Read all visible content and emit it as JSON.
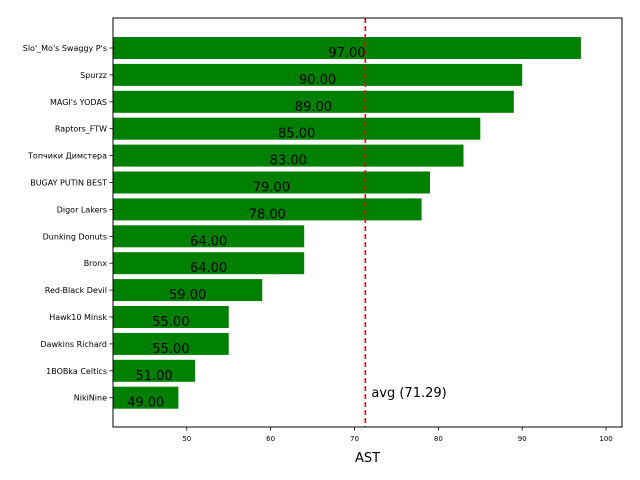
{
  "chart_data": {
    "type": "bar",
    "orientation": "horizontal",
    "categories": [
      "Slo'_Mo's Swaggy P's",
      "Spurzz",
      "MAGI's YODAS",
      "Raptors_FTW",
      "Топчики Димстера",
      "BUGAY PUTIN BEST",
      "Digor Lakers",
      "Dunking Donuts",
      "Bronx",
      "Red-Black Devil",
      "Hawk10 Minsk",
      "Dawkins Richard",
      "1BOBka Celtics",
      "NikiNine"
    ],
    "values": [
      97,
      90,
      89,
      85,
      83,
      79,
      78,
      64,
      64,
      59,
      55,
      55,
      51,
      49
    ],
    "value_labels": [
      "97.00",
      "90.00",
      "89.00",
      "85.00",
      "83.00",
      "79.00",
      "78.00",
      "64.00",
      "64.00",
      "59.00",
      "55.00",
      "55.00",
      "51.00",
      "49.00"
    ],
    "bar_color": "#008000",
    "xlabel": "AST",
    "xlim": [
      41.2,
      101.9
    ],
    "xticks": [
      50,
      60,
      70,
      80,
      90,
      100
    ],
    "xtick_labels": [
      "50",
      "60",
      "70",
      "80",
      "90",
      "100"
    ],
    "average": {
      "value": 71.29,
      "label": "avg (71.29)",
      "color": "#ff0000",
      "style": "dashed"
    },
    "grid": false,
    "legend": false
  }
}
